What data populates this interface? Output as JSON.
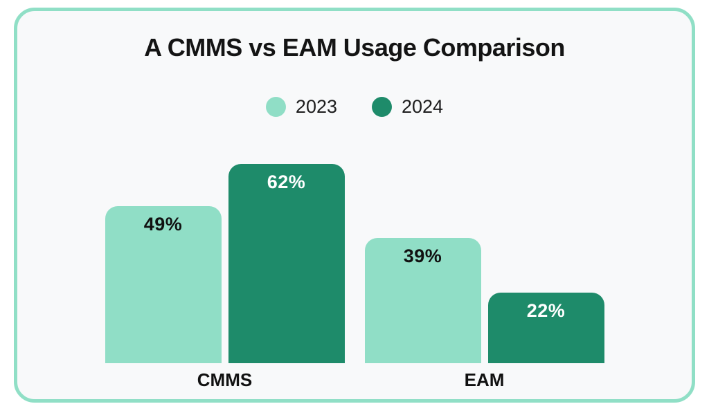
{
  "page": {
    "background": "#ffffff"
  },
  "card": {
    "background": "#f8f9fa",
    "border_color": "#90dfc6"
  },
  "chart_data": {
    "type": "bar",
    "title": "A CMMS vs EAM Usage Comparison",
    "categories": [
      "CMMS",
      "EAM"
    ],
    "series": [
      {
        "name": "2023",
        "values": [
          49,
          39
        ],
        "color": "#90dec6",
        "label_color": "#111111"
      },
      {
        "name": "2024",
        "values": [
          62,
          22
        ],
        "color": "#1e8b6a",
        "label_color": "#ffffff"
      }
    ],
    "value_suffix": "%",
    "ylim": [
      0,
      65
    ],
    "legend_position": "top-center",
    "grid": false,
    "axes_visible": false,
    "data_label_position": "inside-top"
  }
}
